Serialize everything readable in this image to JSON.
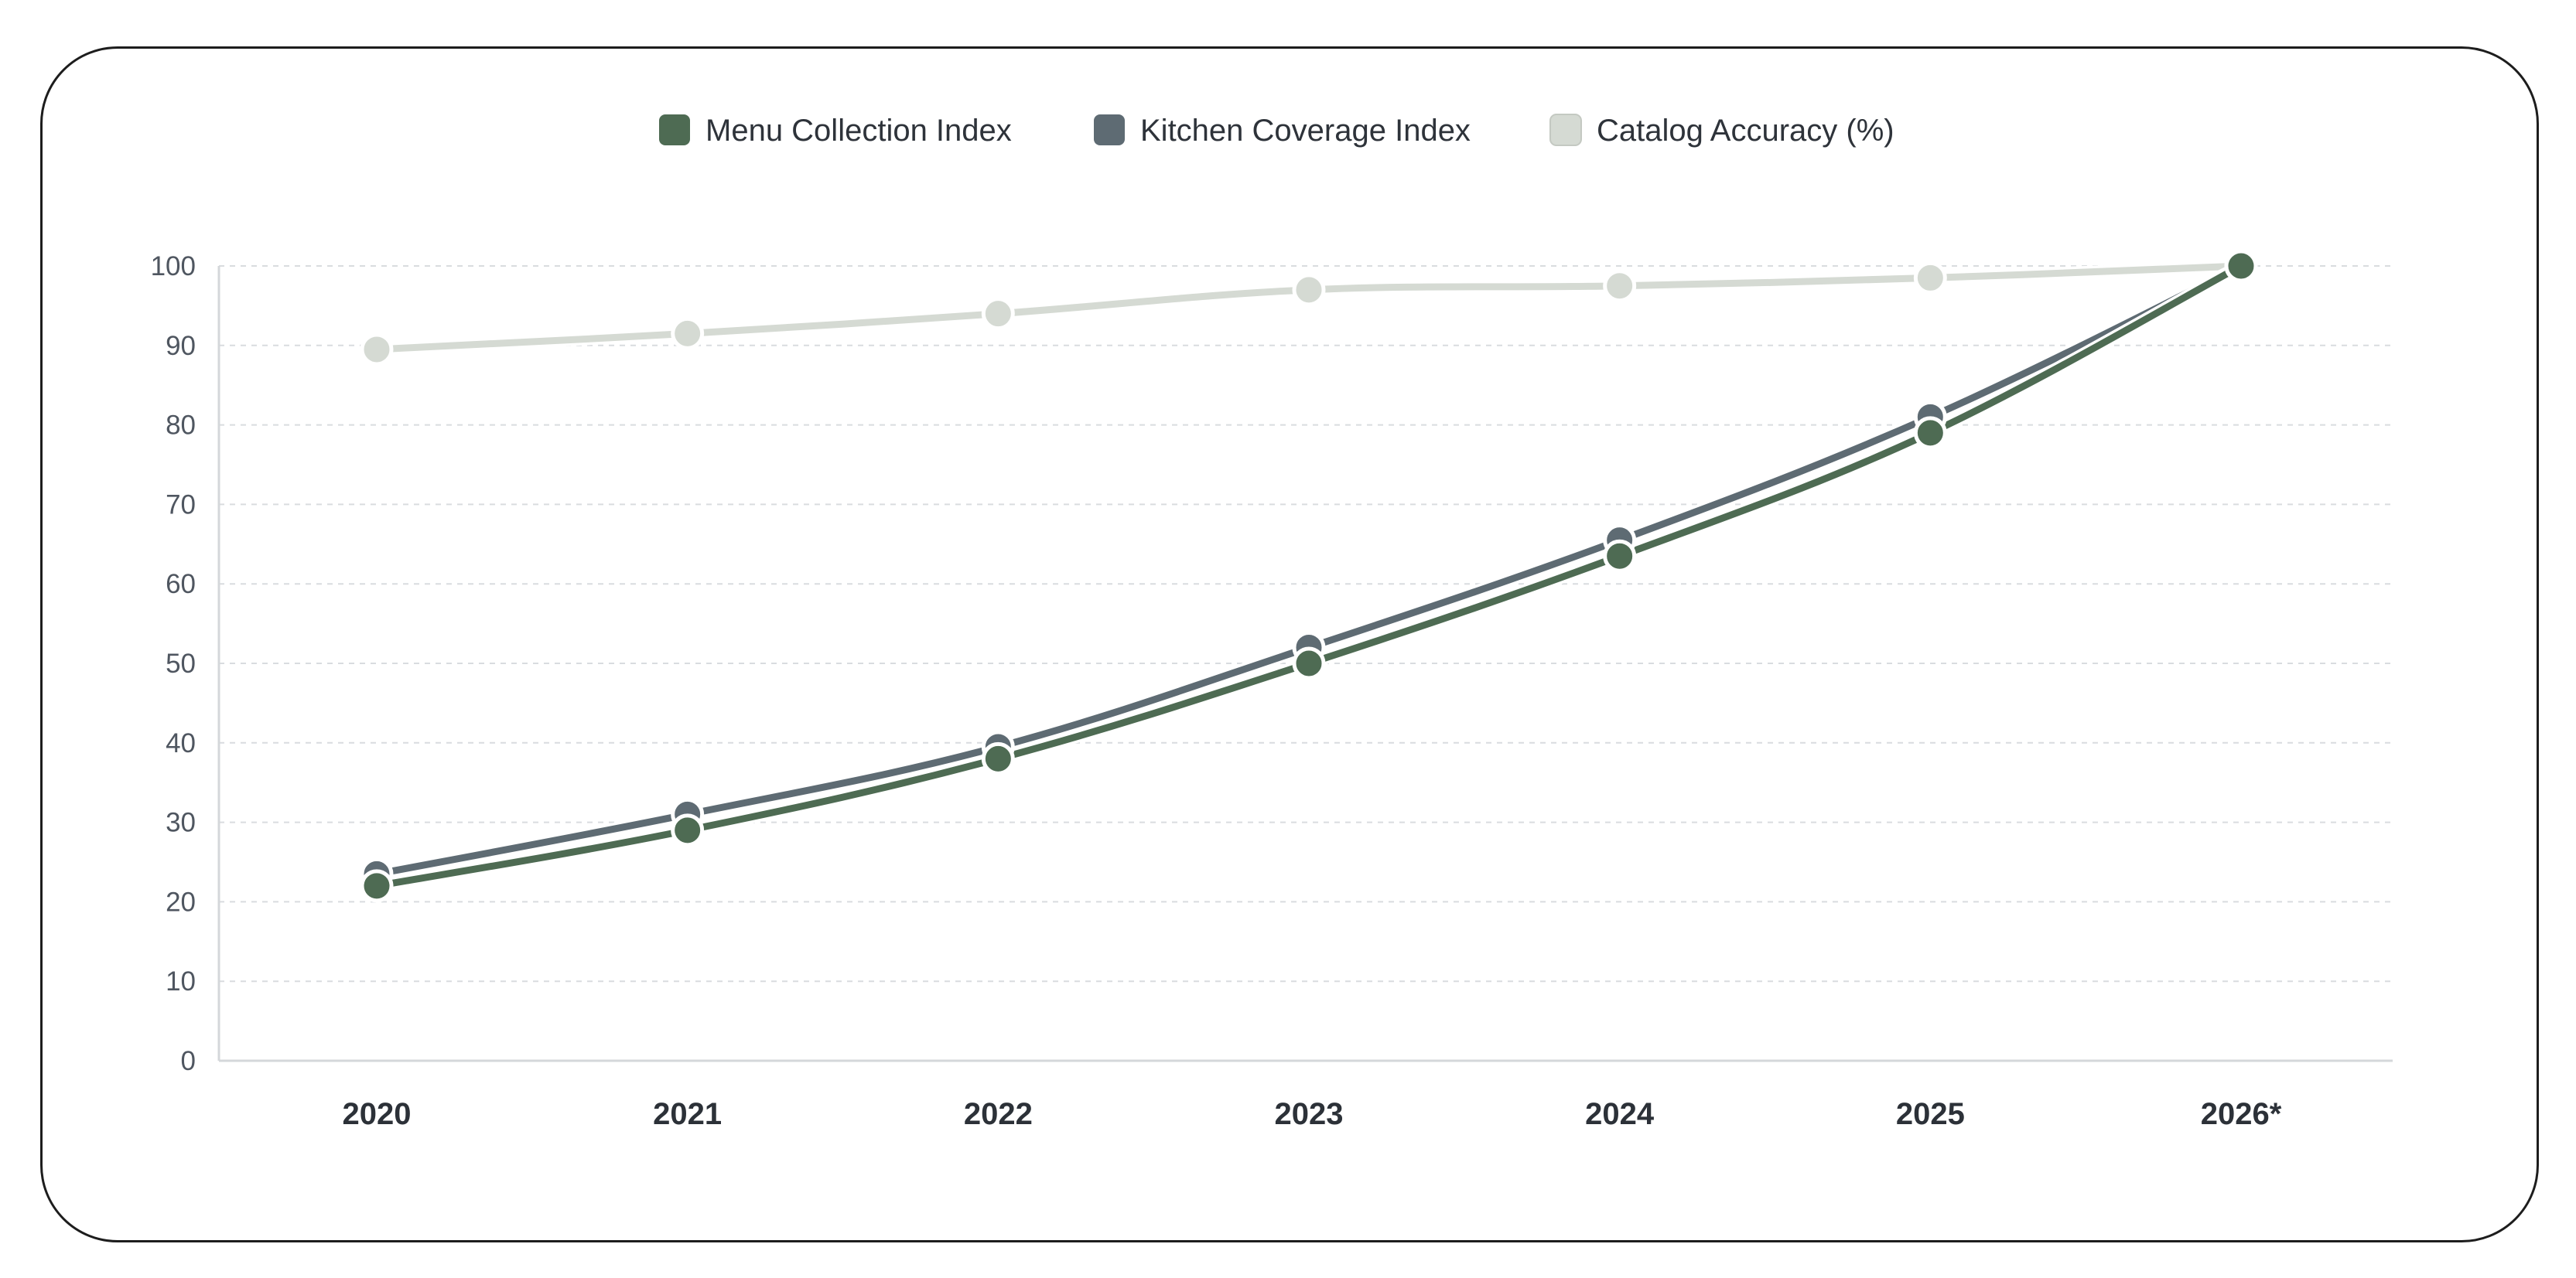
{
  "chart_data": {
    "type": "line",
    "categories": [
      "2020",
      "2021",
      "2022",
      "2023",
      "2024",
      "2025",
      "2026*"
    ],
    "ylim": [
      0,
      100
    ],
    "yticks": [
      0,
      10,
      20,
      30,
      40,
      50,
      60,
      70,
      80,
      90,
      100
    ],
    "grid": true,
    "legend_position": "top-center",
    "series": [
      {
        "name": "Menu Collection Index",
        "color": "#4e6b53",
        "values": [
          22,
          29,
          38,
          50,
          63.5,
          79,
          100
        ]
      },
      {
        "name": "Kitchen Coverage Index",
        "color": "#5e6b73",
        "values": [
          23.5,
          31,
          39.5,
          52,
          65.5,
          81,
          100
        ]
      },
      {
        "name": "Catalog Accuracy (%)",
        "color": "#d5dad3",
        "values": [
          89.5,
          91.5,
          94,
          97,
          97.5,
          98.5,
          100
        ]
      }
    ]
  }
}
